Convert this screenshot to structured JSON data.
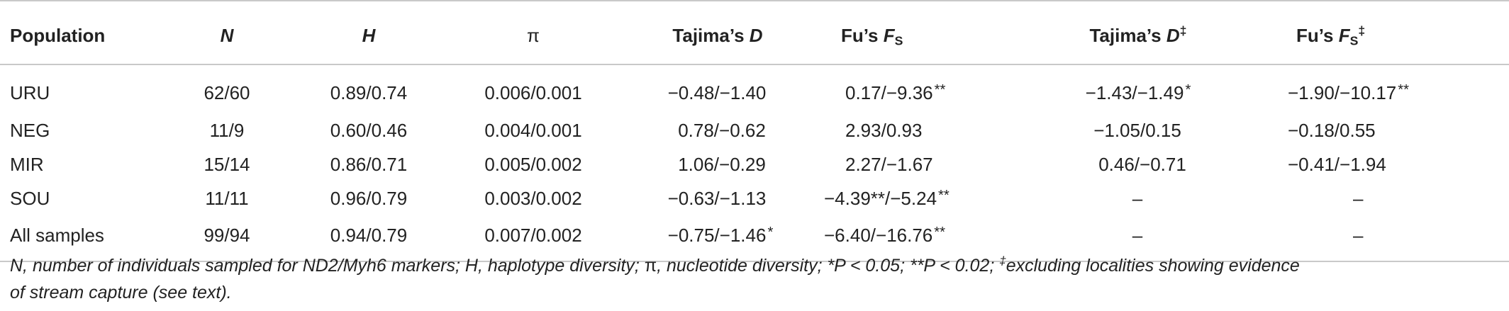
{
  "table": {
    "headers": {
      "population": "Population",
      "n": "N",
      "h": "H",
      "pi": "π",
      "tajima_prefix": "Tajima’s ",
      "tajima_var": "D",
      "fu_prefix": "Fu’s ",
      "fu_var": "F",
      "fu_sub": "S",
      "tajima2_prefix": "Tajima’s ",
      "tajima2_var": "D",
      "tajima2_sup": "‡",
      "fu2_prefix": "Fu’s ",
      "fu2_var": "F",
      "fu2_sub": "S",
      "fu2_sup": "‡"
    },
    "rows": [
      {
        "population": "URU",
        "n": "62/60",
        "h": "0.89/0.74",
        "pi": "0.006/0.001",
        "tajima": "−0.48/−1.40",
        "tajima_sig": "",
        "fu": "0.17/−9.36",
        "fu_sig": "**",
        "tajima2": "−1.43/−1.49",
        "tajima2_sig": "*",
        "fu2": "−1.90/−10.17",
        "fu2_sig": "**"
      },
      {
        "population": "NEG",
        "n": "11/9",
        "h": "0.60/0.46",
        "pi": "0.004/0.001",
        "tajima": "0.78/−0.62",
        "tajima_sig": "",
        "fu": "2.93/0.93",
        "fu_sig": "",
        "tajima2": "−1.05/0.15",
        "tajima2_sig": "",
        "fu2": "−0.18/0.55",
        "fu2_sig": ""
      },
      {
        "population": "MIR",
        "n": "15/14",
        "h": "0.86/0.71",
        "pi": "0.005/0.002",
        "tajima": "1.06/−0.29",
        "tajima_sig": "",
        "fu": "2.27/−1.67",
        "fu_sig": "",
        "tajima2": "0.46/−0.71",
        "tajima2_sig": "",
        "fu2": "−0.41/−1.94",
        "fu2_sig": ""
      },
      {
        "population": "SOU",
        "n": "11/11",
        "h": "0.96/0.79",
        "pi": "0.003/0.002",
        "tajima": "−0.63/−1.13",
        "tajima_sig": "",
        "fu": "−4.39**/−5.24",
        "fu_sig": "**",
        "tajima2": "–",
        "tajima2_sig": "",
        "fu2": "–",
        "fu2_sig": ""
      },
      {
        "population": "All samples",
        "n": "99/94",
        "h": "0.94/0.79",
        "pi": "0.007/0.002",
        "tajima": "−0.75/−1.46",
        "tajima_sig": "*",
        "fu": "−6.40/−16.76",
        "fu_sig": "**",
        "tajima2": "–",
        "tajima2_sig": "",
        "fu2": "–",
        "fu2_sig": ""
      }
    ]
  },
  "footnote": {
    "line1": "N, number of individuals sampled for ND2/Myh6 markers; H, haplotype diversity; ",
    "pi": "π",
    "line1b": ", nucleotide diversity; *P < 0.05; **P < 0.02; ",
    "dagger": "‡",
    "line1c": "excluding localities showing evidence",
    "line2": "of stream capture (see text)."
  }
}
